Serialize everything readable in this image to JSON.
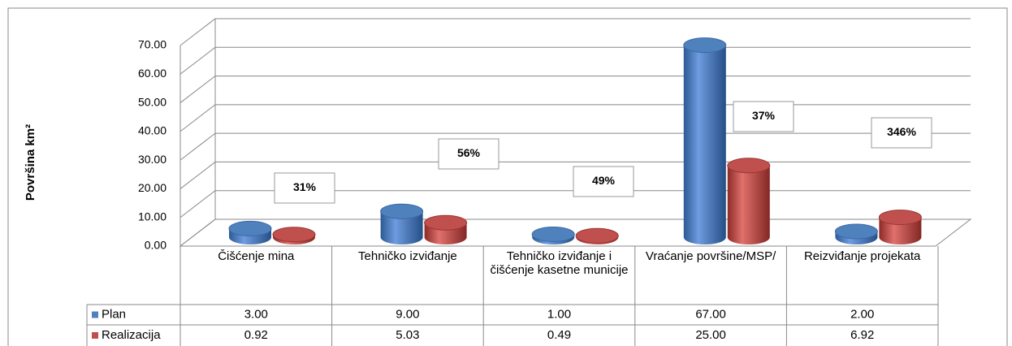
{
  "chart_data": {
    "type": "bar3d",
    "y_label": "Površina km²",
    "categories": [
      "Čišćenje mina",
      "Tehničko izviđanje",
      "Tehničko izviđanje i čišćenje kasetne municije",
      "Vraćanje površine/MSP/",
      "Reizviđanje projekata"
    ],
    "series": [
      {
        "name": "Plan",
        "color": "#4f81bd",
        "values": [
          3,
          9,
          1,
          67,
          2
        ],
        "value_labels": [
          "3.00",
          "9.00",
          "1.00",
          "67.00",
          "2.00"
        ]
      },
      {
        "name": "Realizacija",
        "color": "#c0504d",
        "values": [
          0.92,
          5.03,
          0.49,
          25,
          6.92
        ],
        "value_labels": [
          "0.92",
          "5.03",
          "0.49",
          "25.00",
          "6.92"
        ]
      }
    ],
    "annotations": [
      "31%",
      "56%",
      "49%",
      "37%",
      "346%"
    ],
    "ylim": [
      0,
      70
    ],
    "yticks": [
      {
        "value": 0,
        "label": "0.00"
      },
      {
        "value": 10,
        "label": "10.00"
      },
      {
        "value": 20,
        "label": "20.00"
      },
      {
        "value": 30,
        "label": "30.00"
      },
      {
        "value": 40,
        "label": "40.00"
      },
      {
        "value": 50,
        "label": "50.00"
      },
      {
        "value": 60,
        "label": "60.00"
      },
      {
        "value": 70,
        "label": "70.00"
      }
    ],
    "grid": true
  }
}
